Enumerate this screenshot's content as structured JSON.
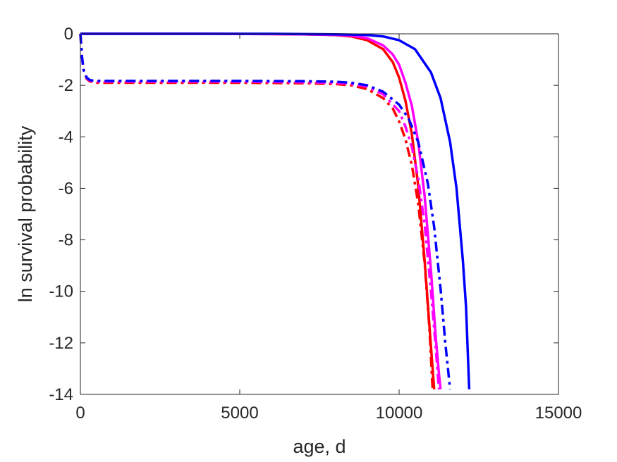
{
  "chart_data": {
    "type": "line",
    "title": "",
    "xlabel": "age, d",
    "ylabel": "ln survival probability",
    "xlim": [
      0,
      15000
    ],
    "ylim": [
      -14,
      0
    ],
    "xticks": [
      0,
      5000,
      10000,
      15000
    ],
    "yticks": [
      0,
      -2,
      -4,
      -6,
      -8,
      -10,
      -12,
      -14
    ],
    "xtick_labels": [
      "0",
      "5000",
      "10000",
      "15000"
    ],
    "ytick_labels": [
      "0",
      "-2",
      "-4",
      "-6",
      "-8",
      "-10",
      "-12",
      "-14"
    ],
    "grid": false,
    "legend": "none",
    "series": [
      {
        "color": "#ff0000",
        "style": "solid",
        "x": [
          0,
          2000,
          4000,
          6000,
          7000,
          8000,
          8500,
          9000,
          9500,
          9800,
          10000,
          10200,
          10400,
          10600,
          10800,
          10950,
          11050,
          11100
        ],
        "y": [
          0,
          0,
          0,
          -0.01,
          -0.02,
          -0.05,
          -0.1,
          -0.25,
          -0.6,
          -1.1,
          -1.7,
          -2.6,
          -3.9,
          -5.9,
          -8.8,
          -11.3,
          -13.0,
          -13.8
        ]
      },
      {
        "color": "#ff00ff",
        "style": "solid",
        "x": [
          0,
          2000,
          4000,
          6000,
          7000,
          8000,
          8500,
          9000,
          9500,
          9800,
          10000,
          10200,
          10400,
          10600,
          10800,
          11000,
          11150,
          11250,
          11300
        ],
        "y": [
          0,
          0,
          0,
          -0.01,
          -0.02,
          -0.04,
          -0.07,
          -0.17,
          -0.45,
          -0.8,
          -1.2,
          -1.9,
          -2.8,
          -4.2,
          -6.3,
          -9.2,
          -11.8,
          -13.2,
          -13.8
        ]
      },
      {
        "color": "#0000ff",
        "style": "solid",
        "x": [
          0,
          2000,
          4000,
          6000,
          7000,
          8000,
          8500,
          9000,
          9500,
          10000,
          10500,
          11000,
          11300,
          11600,
          11800,
          12000,
          12100,
          12200
        ],
        "y": [
          0,
          0,
          0,
          0,
          -0.01,
          -0.02,
          -0.03,
          -0.05,
          -0.1,
          -0.25,
          -0.6,
          -1.5,
          -2.5,
          -4.2,
          -6.0,
          -8.8,
          -10.6,
          -13.8
        ]
      },
      {
        "color": "#ff0000",
        "style": "dashdot",
        "x": [
          0,
          50,
          100,
          200,
          300,
          500,
          1000,
          3000,
          5000,
          7000,
          8000,
          8500,
          9000,
          9500,
          9800,
          10000,
          10200,
          10400,
          10600,
          10800,
          10950,
          11050
        ],
        "y": [
          0,
          -0.9,
          -1.4,
          -1.75,
          -1.85,
          -1.9,
          -1.9,
          -1.9,
          -1.9,
          -1.92,
          -1.95,
          -2.0,
          -2.15,
          -2.5,
          -2.9,
          -3.4,
          -4.1,
          -5.1,
          -6.6,
          -8.9,
          -11.4,
          -13.8
        ]
      },
      {
        "color": "#ff00ff",
        "style": "dashdot",
        "x": [
          0,
          50,
          100,
          200,
          300,
          500,
          1000,
          3000,
          5000,
          7000,
          8000,
          8500,
          9000,
          9500,
          10000,
          10200,
          10400,
          10600,
          10800,
          11000,
          11150,
          11250
        ],
        "y": [
          0,
          -0.9,
          -1.4,
          -1.72,
          -1.82,
          -1.86,
          -1.86,
          -1.86,
          -1.86,
          -1.88,
          -1.9,
          -1.95,
          -2.05,
          -2.35,
          -3.0,
          -3.6,
          -4.4,
          -5.6,
          -7.4,
          -10.0,
          -12.2,
          -13.8
        ]
      },
      {
        "color": "#0000ff",
        "style": "dashdot",
        "x": [
          0,
          50,
          100,
          200,
          300,
          500,
          1000,
          3000,
          5000,
          7000,
          8000,
          8500,
          9000,
          9500,
          10000,
          10300,
          10600,
          10900,
          11100,
          11300,
          11450,
          11600
        ],
        "y": [
          0,
          -0.9,
          -1.4,
          -1.7,
          -1.8,
          -1.83,
          -1.83,
          -1.83,
          -1.83,
          -1.84,
          -1.86,
          -1.9,
          -2.0,
          -2.25,
          -2.75,
          -3.3,
          -4.2,
          -5.8,
          -7.5,
          -9.9,
          -12.0,
          -13.8
        ]
      }
    ]
  }
}
